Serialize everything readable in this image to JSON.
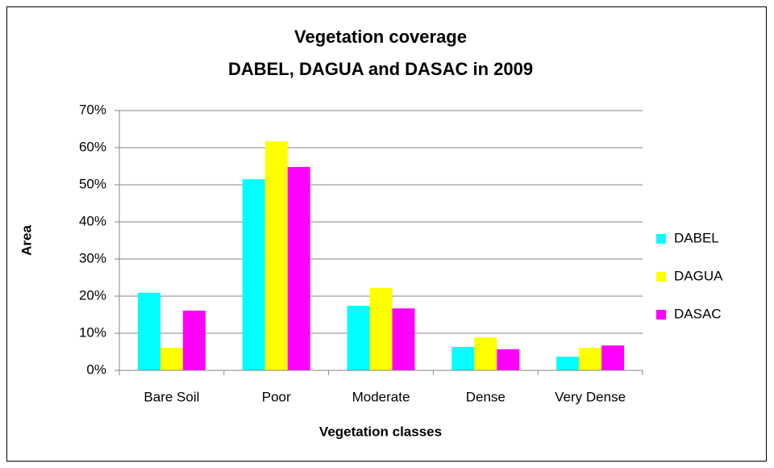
{
  "chart_data": {
    "type": "bar",
    "title": [
      "Vegetation coverage",
      "DABEL, DAGUA and DASAC in 2009"
    ],
    "x_label": "Vegetation classes",
    "y_label": "Area",
    "categories": [
      "Bare Soil",
      "Poor",
      "Moderate",
      "Dense",
      "Very Dense"
    ],
    "series": [
      {
        "name": "DABEL",
        "color": "#00ffff",
        "values": [
          20.9,
          51.5,
          17.4,
          6.3,
          3.7
        ]
      },
      {
        "name": "DAGUA",
        "color": "#ffff00",
        "values": [
          6.1,
          61.7,
          22.2,
          8.9,
          6.1
        ]
      },
      {
        "name": "DASAC",
        "color": "#ff00ff",
        "values": [
          16.1,
          54.8,
          16.7,
          5.7,
          6.7
        ]
      }
    ],
    "ylim": [
      0,
      70
    ],
    "yticks": [
      {
        "value": 0,
        "label": "0%"
      },
      {
        "value": 10,
        "label": "10%"
      },
      {
        "value": 20,
        "label": "20%"
      },
      {
        "value": 30,
        "label": "30%"
      },
      {
        "value": 40,
        "label": "40%"
      },
      {
        "value": 50,
        "label": "50%"
      },
      {
        "value": 60,
        "label": "60%"
      },
      {
        "value": 70,
        "label": "70%"
      }
    ],
    "grid": true,
    "legend": "right"
  }
}
